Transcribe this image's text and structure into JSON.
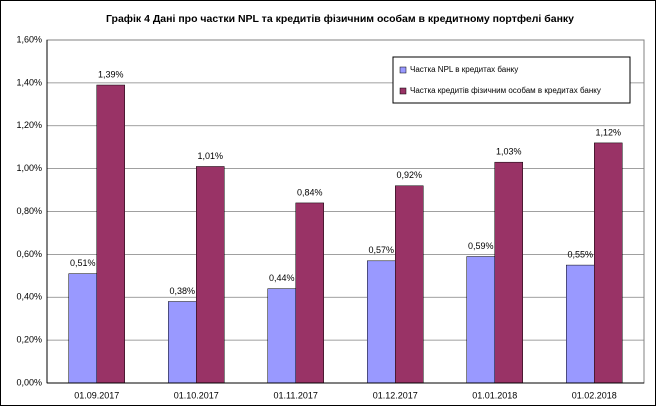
{
  "chart_data": {
    "type": "bar",
    "title": "Графік 4 Дані про частки NPL та кредитів фізичним особам в кредитному портфелі банку",
    "categories": [
      "01.09.2017",
      "01.10.2017",
      "01.11.2017",
      "01.12.2017",
      "01.01.2018",
      "01.02.2018"
    ],
    "series": [
      {
        "name": "Частка NPL в кредитах банку",
        "color": "#9999ff",
        "values": [
          0.51,
          0.38,
          0.44,
          0.57,
          0.59,
          0.55
        ],
        "value_labels": [
          "0,51%",
          "0,38%",
          "0,44%",
          "0,57%",
          "0,59%",
          "0,55%"
        ]
      },
      {
        "name": "Частка кредитів фізичним особам в кредитах банку",
        "color": "#993366",
        "values": [
          1.39,
          1.01,
          0.84,
          0.92,
          1.03,
          1.12
        ],
        "value_labels": [
          "1,39%",
          "1,01%",
          "0,84%",
          "0,92%",
          "1,03%",
          "1,12%"
        ]
      }
    ],
    "ylim": [
      0,
      1.6
    ],
    "yticks": [
      {
        "value": 0,
        "label": "0,00%"
      },
      {
        "value": 0.2,
        "label": "0,20%"
      },
      {
        "value": 0.4,
        "label": "0,40%"
      },
      {
        "value": 0.6,
        "label": "0,60%"
      },
      {
        "value": 0.8,
        "label": "0,80%"
      },
      {
        "value": 1.0,
        "label": "1,00%"
      },
      {
        "value": 1.2,
        "label": "1,20%"
      },
      {
        "value": 1.4,
        "label": "1,40%"
      },
      {
        "value": 1.6,
        "label": "1,60%"
      }
    ],
    "grid": true,
    "legend": "top-right"
  }
}
